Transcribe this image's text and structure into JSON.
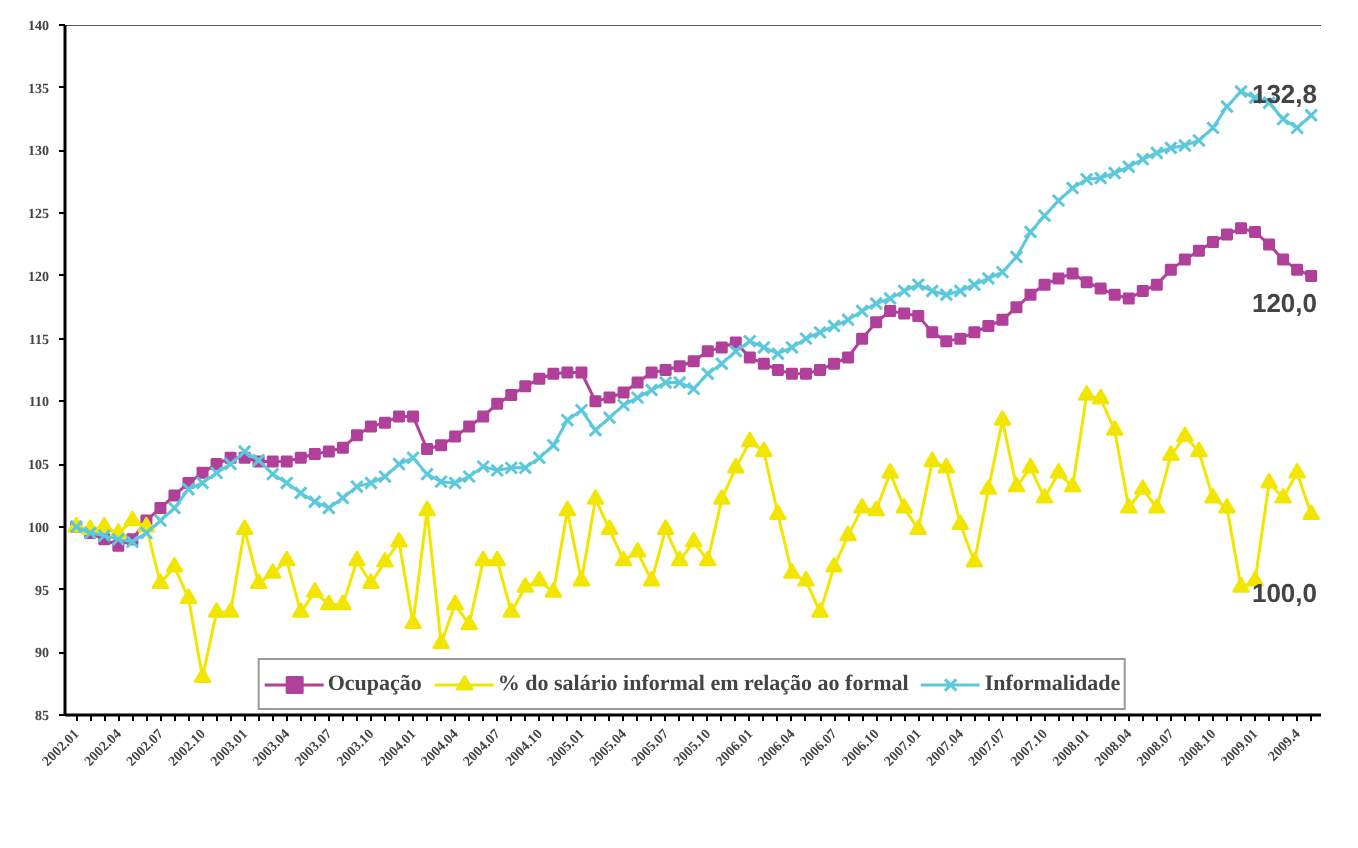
{
  "chart_data": {
    "type": "line",
    "categories": [
      "2002.01",
      null,
      null,
      "2002.04",
      null,
      null,
      "2002.07",
      null,
      null,
      "2002.10",
      null,
      null,
      "2003.01",
      null,
      null,
      "2003.04",
      null,
      null,
      "2003.07",
      null,
      null,
      "2003.10",
      null,
      null,
      "2004.01",
      null,
      null,
      "2004.04",
      null,
      null,
      "2004.07",
      null,
      null,
      "2004.10",
      null,
      null,
      "2005.01",
      null,
      null,
      "2005.04",
      null,
      null,
      "2005.07",
      null,
      null,
      "2005.10",
      null,
      null,
      "2006.01",
      null,
      null,
      "2006.04",
      null,
      null,
      "2006.07",
      null,
      null,
      "2006.10",
      null,
      null,
      "2007.01",
      null,
      null,
      "2007.04",
      null,
      null,
      "2007.07",
      null,
      null,
      "2007.10",
      null,
      null,
      "2008.01",
      null,
      null,
      "2008.04",
      null,
      null,
      "2008.07",
      null,
      null,
      "2008.10",
      null,
      null,
      "2009.01",
      null,
      null,
      "2009.4",
      null
    ],
    "series": [
      {
        "name": "Ocupação",
        "color": "#b0409a",
        "marker": "square",
        "values": [
          100,
          99.5,
          99,
          98.5,
          99,
          100.5,
          101.5,
          102.5,
          103.5,
          104.3,
          105,
          105.5,
          105.5,
          105.2,
          105.2,
          105.2,
          105.5,
          105.8,
          106,
          106.3,
          107.3,
          108,
          108.3,
          108.8,
          108.8,
          106.2,
          106.5,
          107.2,
          108,
          108.8,
          109.8,
          110.5,
          111.2,
          111.8,
          112.2,
          112.3,
          112.3,
          110,
          110.3,
          110.7,
          111.5,
          112.3,
          112.5,
          112.8,
          113.2,
          114,
          114.3,
          114.7,
          113.5,
          113,
          112.5,
          112.2,
          112.2,
          112.5,
          113,
          113.5,
          115,
          116.3,
          117.2,
          117,
          116.8,
          115.5,
          114.8,
          115,
          115.5,
          116,
          116.5,
          117.5,
          118.5,
          119.3,
          119.8,
          120.2,
          119.5,
          119,
          118.5,
          118.2,
          118.8,
          119.3,
          120.5,
          121.3,
          122,
          122.7,
          123.3,
          123.8,
          123.5,
          122.5,
          121.3,
          120.5,
          120.0
        ]
      },
      {
        "name": "% do salário informal em relação ao formal",
        "color": "#f2e600",
        "marker": "triangle",
        "values": [
          100,
          99.8,
          100,
          99.5,
          100.5,
          100,
          95.5,
          96.8,
          94.3,
          88,
          93.2,
          93.2,
          99.8,
          95.5,
          96.3,
          97.3,
          93.2,
          94.8,
          93.8,
          93.8,
          97.3,
          95.5,
          97.2,
          98.8,
          92.3,
          101.3,
          90.7,
          93.8,
          92.2,
          97.3,
          97.3,
          93.2,
          95.2,
          95.7,
          94.8,
          101.3,
          95.7,
          102.2,
          99.8,
          97.3,
          98,
          95.7,
          99.8,
          97.3,
          98.8,
          97.3,
          102.2,
          104.7,
          106.8,
          106,
          101,
          96.3,
          95.7,
          93.2,
          96.8,
          99.3,
          101.5,
          101.3,
          104.3,
          101.5,
          99.8,
          105.2,
          104.7,
          100.2,
          97.2,
          103,
          108.5,
          103.2,
          104.7,
          102.3,
          104.3,
          103.2,
          110.5,
          110.2,
          107.7,
          101.5,
          103,
          101.5,
          105.7,
          107.2,
          106,
          102.3,
          101.5,
          95.2,
          95.7,
          103.5,
          102.3,
          104.3,
          101
        ]
      },
      {
        "name": "Informalidade",
        "color": "#5bc8dc",
        "marker": "cross",
        "values": [
          100,
          99.5,
          99.3,
          99,
          98.8,
          99.5,
          100.5,
          101.5,
          103,
          103.5,
          104.3,
          105,
          106,
          105.3,
          104.2,
          103.5,
          102.7,
          102,
          101.5,
          102.3,
          103.2,
          103.5,
          104,
          105,
          105.5,
          104.2,
          103.6,
          103.5,
          104,
          104.8,
          104.5,
          104.7,
          104.7,
          105.5,
          106.5,
          108.5,
          109.3,
          107.7,
          108.7,
          109.7,
          110.3,
          110.9,
          111.5,
          111.5,
          111,
          112.2,
          113,
          114,
          114.8,
          114.3,
          113.8,
          114.3,
          115,
          115.5,
          116,
          116.5,
          117.2,
          117.8,
          118.2,
          118.8,
          119.3,
          118.8,
          118.5,
          118.8,
          119.3,
          119.8,
          120.3,
          121.5,
          123.5,
          124.8,
          126,
          127,
          127.7,
          127.8,
          128.2,
          128.7,
          129.3,
          129.8,
          130.2,
          130.4,
          130.8,
          131.8,
          133.5,
          134.7,
          134.2,
          133.8,
          132.5,
          131.8,
          132.8
        ]
      }
    ],
    "annotations": [
      "132,8",
      "120,0",
      "100,0"
    ],
    "ylim": [
      85,
      140
    ],
    "yticks": [
      85,
      90,
      95,
      100,
      105,
      110,
      115,
      120,
      125,
      130,
      135,
      140
    ],
    "grid": false,
    "legend": "bottom"
  }
}
